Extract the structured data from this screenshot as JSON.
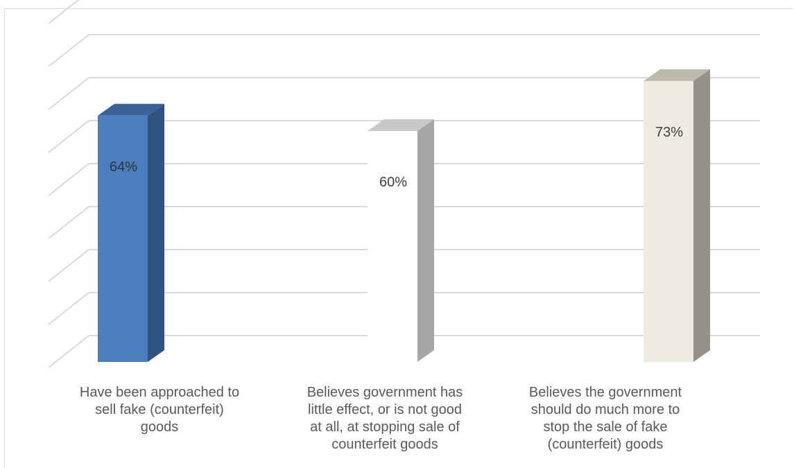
{
  "chart_data": {
    "type": "bar",
    "three_d": true,
    "categories": [
      "Have been approached to sell fake (counterfeit) goods",
      "Believes government has little effect, or is not good at all, at stopping sale of counterfeit goods",
      "Believes the government should do much more to stop the sale of fake (counterfeit) goods"
    ],
    "category_lines": [
      [
        "Have been approached to",
        "sell fake (counterfeit)",
        "goods"
      ],
      [
        "Believes government has",
        "little effect, or is not good",
        "at all, at stopping sale of",
        "counterfeit goods"
      ],
      [
        "Believes the government",
        "should do much more to",
        "stop the sale of fake",
        "(counterfeit) goods"
      ]
    ],
    "values": [
      64,
      60,
      73
    ],
    "value_labels": [
      "64%",
      "60%",
      "73%"
    ],
    "unit": "%",
    "ylim": [
      0,
      90
    ],
    "gridlines": 9,
    "grid": true,
    "legend": "none",
    "title": "",
    "xlabel": "",
    "ylabel": "",
    "colors": [
      {
        "front": "#4a7ebf",
        "side": "#2f5382",
        "top": "#3a6498",
        "label": "#333333"
      },
      {
        "front": "#ffffff",
        "side": "#a6a6a6",
        "top": "#c8c8c8",
        "label": "#404040"
      },
      {
        "front": "#eeece1",
        "side": "#959189",
        "top": "#bcb9ad",
        "label": "#404040"
      }
    ],
    "grid_color": "#d9d9d9",
    "text_color": "#595959"
  }
}
